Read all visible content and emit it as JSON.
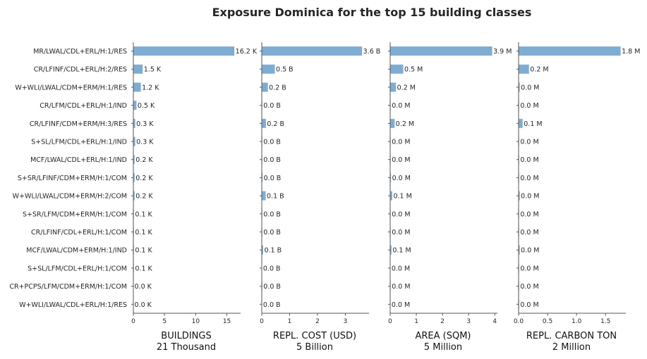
{
  "title": "Exposure Dominica for the top 15 building classes",
  "colors": {
    "bar": "#7fadd2",
    "axis": "#555555",
    "text": "#262626"
  },
  "chart_data": {
    "type": "bar",
    "orientation": "horizontal",
    "title": "Exposure Dominica for the top 15 building classes",
    "grid": false,
    "categories": [
      "MR/LWAL/CDL+ERL/H:1/RES",
      "CR/LFINF/CDL+ERL/H:2/RES",
      "W+WLI/LWAL/CDM+ERM/H:1/RES",
      "CR/LFM/CDL+ERL/H:1/IND",
      "CR/LFINF/CDM+ERM/H:3/RES",
      "S+SL/LFM/CDL+ERL/H:1/IND",
      "MCF/LWAL/CDL+ERL/H:1/IND",
      "S+SR/LFINF/CDM+ERM/H:1/COM",
      "W+WLI/LWAL/CDM+ERM/H:2/COM",
      "S+SR/LFM/CDM+ERM/H:1/COM",
      "CR/LFINF/CDL+ERL/H:1/COM",
      "MCF/LWAL/CDM+ERM/H:1/IND",
      "S+SL/LFM/CDL+ERL/H:1/COM",
      "CR+PCPS/LFM/CDM+ERM/H:1/COM",
      "W+WLI/LWAL/CDL+ERL/H:1/RES"
    ],
    "panels": [
      {
        "name": "buildings",
        "xlabel": "BUILDINGS",
        "total": "21 Thousand",
        "unit": "K",
        "xlim": [
          0,
          17.2
        ],
        "ticks": [
          0,
          5,
          10,
          15
        ],
        "tick_labels": [
          "0",
          "5",
          "10",
          "15"
        ],
        "values": [
          16.2,
          1.5,
          1.2,
          0.5,
          0.3,
          0.3,
          0.2,
          0.2,
          0.2,
          0.1,
          0.1,
          0.1,
          0.1,
          0.0,
          0.0
        ],
        "labels": [
          "16.2 K",
          "1.5 K",
          "1.2 K",
          "0.5 K",
          "0.3 K",
          "0.3 K",
          "0.2 K",
          "0.2 K",
          "0.2 K",
          "0.1 K",
          "0.1 K",
          "0.1 K",
          "0.1 K",
          "0.0 K",
          "0.0 K"
        ]
      },
      {
        "name": "repl-cost",
        "xlabel": "REPL. COST (USD)",
        "total": "5 Billion",
        "unit": "B",
        "xlim": [
          0,
          3.85
        ],
        "ticks": [
          0,
          1,
          2,
          3
        ],
        "tick_labels": [
          "0",
          "1",
          "2",
          "3"
        ],
        "values": [
          3.6,
          0.47,
          0.22,
          0.02,
          0.15,
          0.02,
          0.02,
          0.03,
          0.14,
          0.02,
          0.02,
          0.05,
          0.01,
          0.02,
          0.01
        ],
        "labels": [
          "3.6 B",
          "0.5 B",
          "0.2 B",
          "0.0 B",
          "0.2 B",
          "0.0 B",
          "0.0 B",
          "0.0 B",
          "0.1 B",
          "0.0 B",
          "0.0 B",
          "0.1 B",
          "0.0 B",
          "0.0 B",
          "0.0 B"
        ]
      },
      {
        "name": "area",
        "xlabel": "AREA (SQM)",
        "total": "5 Million",
        "unit": "M",
        "xlim": [
          0,
          4.1
        ],
        "ticks": [
          0,
          1,
          2,
          3,
          4
        ],
        "tick_labels": [
          "0",
          "1",
          "2",
          "3",
          "4"
        ],
        "values": [
          3.9,
          0.5,
          0.22,
          0.02,
          0.17,
          0.02,
          0.02,
          0.03,
          0.08,
          0.02,
          0.02,
          0.05,
          0.01,
          0.02,
          0.01
        ],
        "labels": [
          "3.9 M",
          "0.5 M",
          "0.2 M",
          "0.0 M",
          "0.2 M",
          "0.0 M",
          "0.0 M",
          "0.0 M",
          "0.1 M",
          "0.0 M",
          "0.0 M",
          "0.1 M",
          "0.0 M",
          "0.0 M",
          "0.0 M"
        ]
      },
      {
        "name": "repl-carbon",
        "xlabel": "REPL. CARBON TON",
        "total": "2 Million",
        "unit": "M",
        "xlim": [
          0,
          1.85
        ],
        "ticks": [
          0,
          0.5,
          1.0,
          1.5
        ],
        "tick_labels": [
          "0.0",
          "0.5",
          "1.0",
          "1.5"
        ],
        "values": [
          1.76,
          0.18,
          0.02,
          0.01,
          0.07,
          0.01,
          0.01,
          0.01,
          0.02,
          0.01,
          0.01,
          0.02,
          0.01,
          0.01,
          0.01
        ],
        "labels": [
          "1.8 M",
          "0.2 M",
          "0.0 M",
          "0.0 M",
          "0.1 M",
          "0.0 M",
          "0.0 M",
          "0.0 M",
          "0.0 M",
          "0.0 M",
          "0.0 M",
          "0.0 M",
          "0.0 M",
          "0.0 M",
          "0.0 M"
        ]
      }
    ]
  }
}
